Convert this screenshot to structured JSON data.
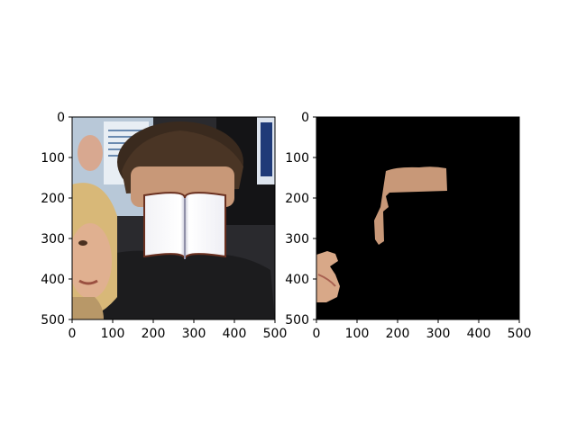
{
  "figure": {
    "panels": [
      {
        "name": "photo",
        "image_description": "photo of a man in a dark jacket, face covered by an open book; a blonde woman at left edge; poster in background",
        "x_ticks": [
          "0",
          "100",
          "200",
          "300",
          "400",
          "500"
        ],
        "y_ticks": [
          "0",
          "100",
          "200",
          "300",
          "400",
          "500"
        ]
      },
      {
        "name": "mask",
        "image_description": "black background with skin-colored segmented regions (forehead strip and part of a face at left)",
        "x_ticks": [
          "0",
          "100",
          "200",
          "300",
          "400",
          "500"
        ],
        "y_ticks": [
          "0",
          "100",
          "200",
          "300",
          "400",
          "500"
        ]
      }
    ],
    "axis_range": [
      0,
      500
    ],
    "colors": {
      "mask_background": "#000000",
      "skin": "#c89878",
      "jacket": "#1c1c1e",
      "hair": "#3a2a1e",
      "blonde_hair": "#d8b878"
    }
  }
}
